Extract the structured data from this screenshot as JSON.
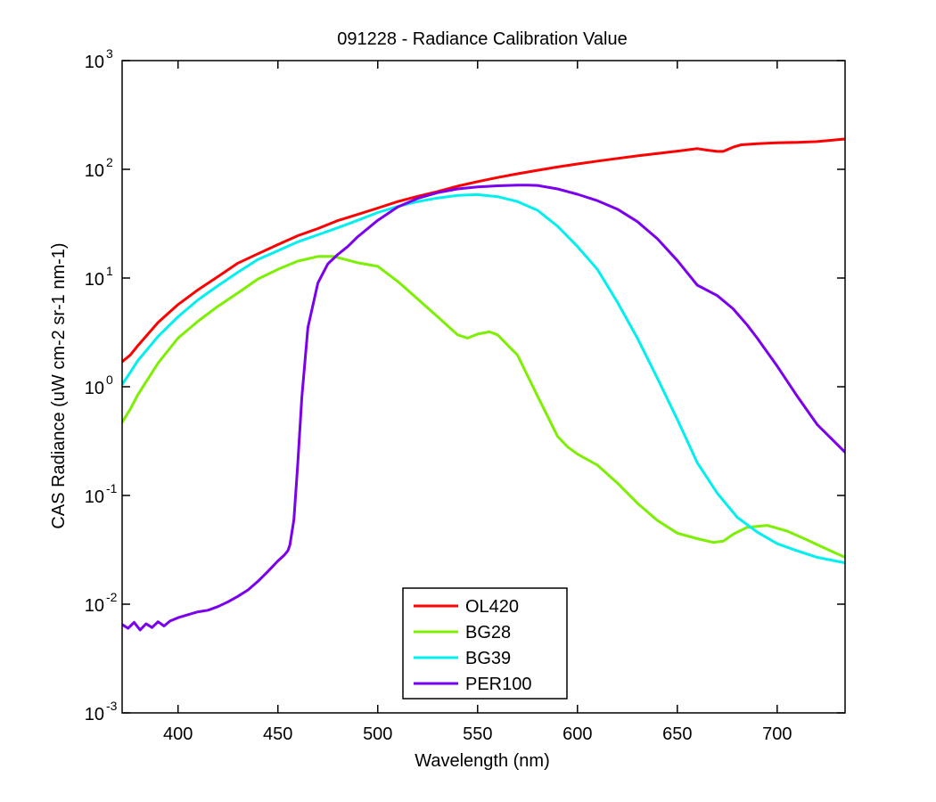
{
  "chart_data": {
    "type": "line",
    "title": "091228 - Radiance Calibration Value",
    "xlabel": "Wavelength (nm)",
    "ylabel": "CAS Radiance (uW cm-2 sr-1 nm-1)",
    "xlim": [
      372,
      734
    ],
    "ylim": [
      0.001,
      1000
    ],
    "yscale": "log",
    "grid": false,
    "legend_position": "bottom-center",
    "x_ticks": [
      400,
      450,
      500,
      550,
      600,
      650,
      700
    ],
    "y_ticks": [
      {
        "value": 0.001,
        "base": "10",
        "exp": "-3"
      },
      {
        "value": 0.01,
        "base": "10",
        "exp": "-2"
      },
      {
        "value": 0.1,
        "base": "10",
        "exp": "-1"
      },
      {
        "value": 1,
        "base": "10",
        "exp": "0"
      },
      {
        "value": 10,
        "base": "10",
        "exp": "1"
      },
      {
        "value": 100,
        "base": "10",
        "exp": "2"
      },
      {
        "value": 1000,
        "base": "10",
        "exp": "3"
      }
    ],
    "series": [
      {
        "name": "OL420",
        "color": "#ff0000",
        "x": [
          372,
          376,
          380,
          390,
          400,
          410,
          420,
          430,
          440,
          450,
          460,
          470,
          480,
          490,
          500,
          510,
          520,
          530,
          540,
          550,
          560,
          570,
          580,
          590,
          600,
          610,
          620,
          630,
          640,
          650,
          660,
          665,
          670,
          673,
          678,
          682,
          690,
          700,
          710,
          720,
          734
        ],
        "y": [
          1.7,
          1.95,
          2.4,
          3.9,
          5.7,
          7.8,
          10.3,
          13.7,
          16.7,
          20.3,
          24.5,
          28.5,
          33.8,
          38.5,
          44.0,
          50.5,
          56.5,
          62.5,
          70.0,
          77.0,
          84.0,
          91.0,
          98.0,
          105,
          112,
          119,
          126,
          133,
          140,
          147,
          155,
          150,
          146,
          146,
          160,
          168,
          172,
          175,
          177,
          180,
          190
        ]
      },
      {
        "name": "BG28",
        "color": "#7cf000",
        "x": [
          372,
          376,
          380,
          390,
          400,
          410,
          420,
          430,
          440,
          450,
          460,
          470,
          478,
          485,
          490,
          500,
          510,
          520,
          530,
          540,
          545,
          550,
          556,
          560,
          570,
          580,
          590,
          595,
          600,
          610,
          620,
          630,
          640,
          650,
          660,
          668,
          673,
          678,
          685,
          695,
          705,
          715,
          725,
          734
        ],
        "y": [
          0.47,
          0.62,
          0.85,
          1.65,
          2.8,
          4.0,
          5.5,
          7.3,
          9.8,
          12.0,
          14.3,
          15.8,
          15.8,
          14.6,
          13.8,
          12.8,
          9.3,
          6.4,
          4.4,
          3.0,
          2.8,
          3.05,
          3.2,
          3.0,
          1.95,
          0.82,
          0.35,
          0.28,
          0.24,
          0.19,
          0.13,
          0.085,
          0.059,
          0.045,
          0.04,
          0.037,
          0.038,
          0.044,
          0.051,
          0.053,
          0.047,
          0.039,
          0.032,
          0.027
        ]
      },
      {
        "name": "BG39",
        "color": "#00f0f0",
        "x": [
          372,
          376,
          380,
          390,
          400,
          410,
          420,
          430,
          440,
          450,
          460,
          470,
          480,
          490,
          500,
          510,
          520,
          530,
          540,
          550,
          560,
          570,
          580,
          590,
          600,
          610,
          620,
          630,
          640,
          650,
          660,
          670,
          680,
          690,
          700,
          710,
          720,
          734
        ],
        "y": [
          1.05,
          1.35,
          1.75,
          2.9,
          4.4,
          6.3,
          8.5,
          11.3,
          14.8,
          17.8,
          21.5,
          25.0,
          29.0,
          34.0,
          40.0,
          45.5,
          50.5,
          54.5,
          57.5,
          58.5,
          56.0,
          50.5,
          42.0,
          30.0,
          19.5,
          12.0,
          6.0,
          2.8,
          1.2,
          0.5,
          0.2,
          0.105,
          0.063,
          0.046,
          0.036,
          0.031,
          0.027,
          0.024
        ]
      },
      {
        "name": "PER100",
        "color": "#7a00ee",
        "x": [
          372,
          375,
          378,
          381,
          384,
          387,
          390,
          393,
          396,
          400,
          405,
          410,
          415,
          420,
          425,
          430,
          435,
          440,
          445,
          450,
          453,
          455,
          456,
          458,
          460,
          462,
          465,
          470,
          475,
          480,
          485,
          490,
          500,
          510,
          520,
          530,
          540,
          550,
          560,
          570,
          575,
          580,
          590,
          600,
          610,
          620,
          630,
          640,
          650,
          660,
          670,
          678,
          685,
          690,
          700,
          710,
          720,
          734
        ],
        "y": [
          0.0065,
          0.006,
          0.0068,
          0.0058,
          0.0066,
          0.0061,
          0.0069,
          0.0063,
          0.007,
          0.0075,
          0.008,
          0.0085,
          0.0088,
          0.0095,
          0.0105,
          0.0118,
          0.0135,
          0.0162,
          0.02,
          0.025,
          0.028,
          0.031,
          0.035,
          0.06,
          0.2,
          0.8,
          3.5,
          9.0,
          13.5,
          16.5,
          19.5,
          24.0,
          34.0,
          45.0,
          54.0,
          61.0,
          66.0,
          69.0,
          70.5,
          71.5,
          71.5,
          71.0,
          66.0,
          59.0,
          51.5,
          43.0,
          33.0,
          23.0,
          14.5,
          8.6,
          6.9,
          5.2,
          3.7,
          2.8,
          1.55,
          0.82,
          0.45,
          0.25
        ]
      }
    ]
  }
}
